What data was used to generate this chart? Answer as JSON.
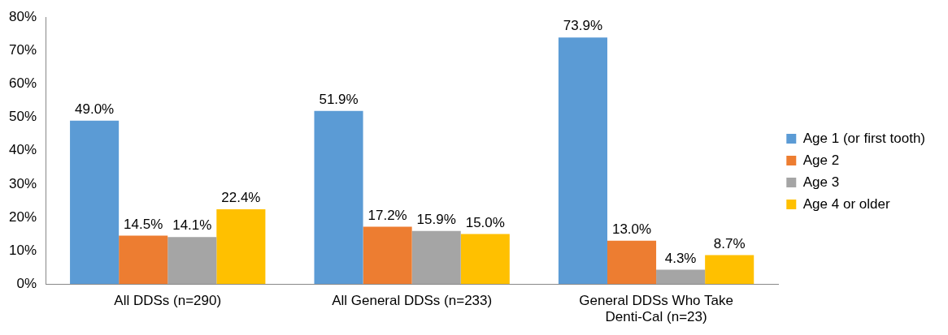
{
  "chart_data": {
    "type": "bar",
    "categories": [
      "All DDSs (n=290)",
      "All General DDSs (n=233)",
      "General DDSs Who Take Denti-Cal (n=23)"
    ],
    "series": [
      {
        "name": "Age 1 (or first tooth)",
        "color": "#5b9bd5",
        "values": [
          49.0,
          51.9,
          73.9
        ],
        "value_labels": [
          "49.0%",
          "51.9%",
          "73.9%"
        ]
      },
      {
        "name": "Age 2",
        "color": "#ed7d31",
        "values": [
          14.5,
          17.2,
          13.0
        ],
        "value_labels": [
          "14.5%",
          "17.2%",
          "13.0%"
        ]
      },
      {
        "name": "Age 3",
        "color": "#a5a5a5",
        "values": [
          14.1,
          15.9,
          4.3
        ],
        "value_labels": [
          "14.1%",
          "15.9%",
          "4.3%"
        ]
      },
      {
        "name": "Age 4 or older",
        "color": "#ffc000",
        "values": [
          22.4,
          15.0,
          8.7
        ],
        "value_labels": [
          "22.4%",
          "15.0%",
          "8.7%"
        ]
      }
    ],
    "ylim": [
      0,
      80
    ],
    "yticks": [
      {
        "value": 0,
        "label": "0%"
      },
      {
        "value": 10,
        "label": "10%"
      },
      {
        "value": 20,
        "label": "20%"
      },
      {
        "value": 30,
        "label": "30%"
      },
      {
        "value": 40,
        "label": "40%"
      },
      {
        "value": 50,
        "label": "50%"
      },
      {
        "value": 60,
        "label": "60%"
      },
      {
        "value": 70,
        "label": "70%"
      },
      {
        "value": 80,
        "label": "80%"
      }
    ],
    "grid": false,
    "legend": "right"
  }
}
